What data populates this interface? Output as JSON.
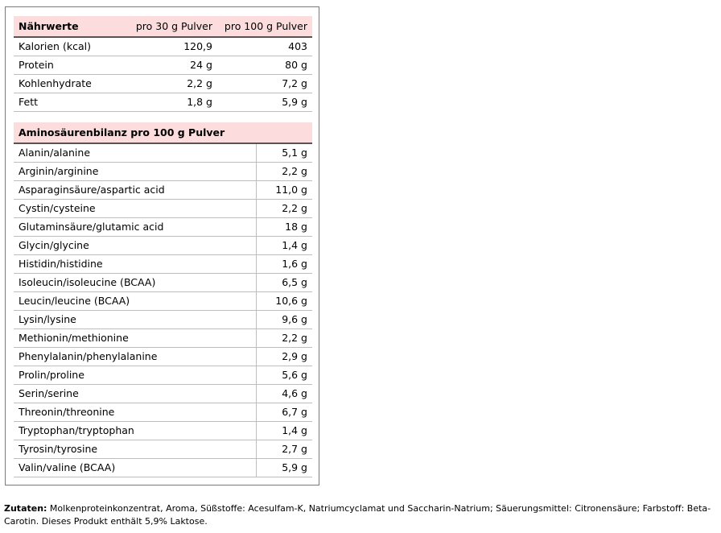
{
  "naehrwerte": {
    "header": [
      "Nährwerte",
      "pro 30 g Pulver",
      "pro 100 g Pulver"
    ],
    "rows": [
      [
        "Kalorien (kcal)",
        "120,9",
        "403"
      ],
      [
        "Protein",
        "24 g",
        "80 g"
      ],
      [
        "Kohlenhydrate",
        "2,2 g",
        "7,2 g"
      ],
      [
        "Fett",
        "1,8 g",
        "5,9 g"
      ]
    ]
  },
  "aminos": {
    "header": "Aminosäurenbilanz pro 100 g Pulver",
    "rows": [
      [
        "Alanin/alanine",
        "5,1 g"
      ],
      [
        "Arginin/arginine",
        "2,2 g"
      ],
      [
        "Asparaginsäure/aspartic acid",
        "11,0 g"
      ],
      [
        "Cystin/cysteine",
        "2,2 g"
      ],
      [
        "Glutaminsäure/glutamic acid",
        "18 g"
      ],
      [
        "Glycin/glycine",
        "1,4 g"
      ],
      [
        "Histidin/histidine",
        "1,6 g"
      ],
      [
        "Isoleucin/isoleucine (BCAA)",
        "6,5 g"
      ],
      [
        "Leucin/leucine (BCAA)",
        "10,6 g"
      ],
      [
        "Lysin/lysine",
        "9,6 g"
      ],
      [
        "Methionin/methionine",
        "2,2 g"
      ],
      [
        "Phenylalanin/phenylalanine",
        "2,9 g"
      ],
      [
        "Prolin/proline",
        "5,6 g"
      ],
      [
        "Serin/serine",
        "4,6 g"
      ],
      [
        "Threonin/threonine",
        "6,7 g"
      ],
      [
        "Tryptophan/tryptophan",
        "1,4 g"
      ],
      [
        "Tyrosin/tyrosine",
        "2,7 g"
      ],
      [
        "Valin/valine (BCAA)",
        "5,9 g"
      ]
    ]
  },
  "footer": {
    "label": "Zutaten:",
    "text": " Molkenproteinkonzentrat, Aroma, Süßstoffe: Acesulfam-K, Natriumcyclamat und Saccharin-Natrium; Säuerungsmittel: Citronensäure; Farbstoff: Beta-Carotin. Dieses Produkt enthält 5,9% Laktose."
  }
}
